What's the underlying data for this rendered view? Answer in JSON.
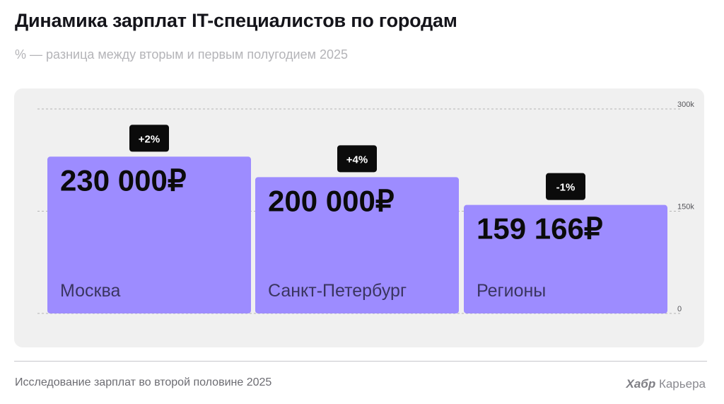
{
  "header": {
    "title": "Динамика зарплат IT-специалистов по городам",
    "subtitle": "% — разница между вторым и первым полугодием 2025"
  },
  "footer": {
    "source": "Исследование зарплат во второй половине 2025",
    "brand_strong": "Хабр",
    "brand_rest": "Карьера"
  },
  "colors": {
    "bar": "#9d8cff",
    "badge_bg": "#0b0b0b",
    "badge_text": "#ffffff",
    "value_text": "#0b0b0b",
    "city_text": "#3a3560",
    "grid": "#b5b5b5",
    "tick_text": "#55555a"
  },
  "chart_data": {
    "type": "bar",
    "categories": [
      "Москва",
      "Санкт-Петербург",
      "Регионы"
    ],
    "values": [
      230000,
      200000,
      159166
    ],
    "value_labels": [
      "230 000₽",
      "200 000₽",
      "159 166₽"
    ],
    "change_labels": [
      "+2%",
      "+4%",
      "-1%"
    ],
    "y_ticks": [
      0,
      150000,
      300000
    ],
    "y_tick_labels": [
      "0",
      "150k",
      "300k"
    ],
    "ylim": [
      0,
      300000
    ],
    "grid": true,
    "legend": "none"
  }
}
